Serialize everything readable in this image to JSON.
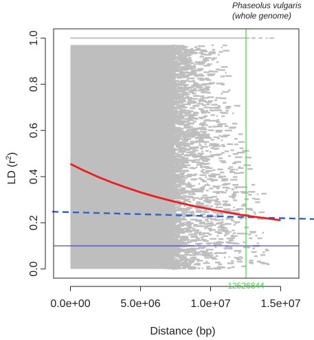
{
  "chart_data": {
    "type": "scatter",
    "title": "",
    "species_label_line1": "Phaseolus vulgaris",
    "species_label_line2": "(whole genome)",
    "xlabel": "Distance (bp)",
    "ylabel_main": "LD (r",
    "ylabel_sup": "2",
    "ylabel_end": ")",
    "xlim": [
      -1200000,
      16300000
    ],
    "ylim": [
      -0.04,
      1.04
    ],
    "x_ticks": [
      0,
      5000000,
      10000000,
      15000000
    ],
    "x_tick_labels": [
      "0.0e+00",
      "5.0e+06",
      "1.0e+07",
      "1.5e+07"
    ],
    "y_ticks": [
      0.0,
      0.2,
      0.4,
      0.6,
      0.8,
      1.0
    ],
    "y_tick_labels": [
      "0.0",
      "0.2",
      "0.4",
      "0.6",
      "0.8",
      "1.0"
    ],
    "grid": false,
    "scatter_color": "#bebebe",
    "scatter_extent": {
      "x_max_dense": 9500000,
      "x_max_sparse": 14800000,
      "y_max": 0.97
    },
    "decay_curve": {
      "name": "",
      "color": "#ee1c1c",
      "x": [
        0,
        1000000,
        2000000,
        3000000,
        4000000,
        5000000,
        6000000,
        7000000,
        8000000,
        9000000,
        10000000,
        11000000,
        12000000,
        12526844,
        13000000,
        14000000,
        15000000
      ],
      "y": [
        0.455,
        0.425,
        0.398,
        0.374,
        0.352,
        0.332,
        0.314,
        0.298,
        0.283,
        0.27,
        0.258,
        0.247,
        0.236,
        0.231,
        0.227,
        0.219,
        0.211
      ]
    },
    "dashed_line": {
      "name": "",
      "color": "#2a62c8",
      "x": [
        -1200000,
        16300000
      ],
      "y": [
        0.248,
        0.222
      ]
    },
    "threshold_line": {
      "name": "",
      "color": "#3333dd",
      "y": 0.1
    },
    "intercept_line": {
      "name": "",
      "color": "#33dd33",
      "x": 12526844,
      "label": "12526844"
    }
  }
}
